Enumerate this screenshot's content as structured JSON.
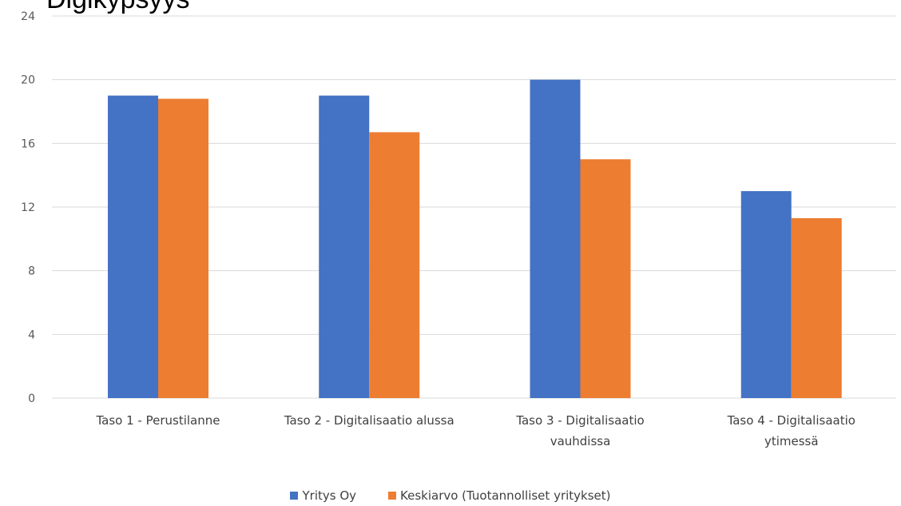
{
  "chart_data": {
    "type": "bar",
    "title": "Digikypsyys",
    "categories": [
      "Taso 1 - Perustilanne",
      "Taso 2 - Digitalisaatio alussa",
      "Taso 3 - Digitalisaatio vauhdissa",
      "Taso 4 - Digitalisaatio ytimessä"
    ],
    "category_lines": [
      [
        "Taso 1 - Perustilanne"
      ],
      [
        "Taso 2 - Digitalisaatio alussa"
      ],
      [
        "Taso 3 - Digitalisaatio",
        "vauhdissa"
      ],
      [
        "Taso 4 - Digitalisaatio",
        "ytimessä"
      ]
    ],
    "series": [
      {
        "name": "Yritys Oy",
        "color": "#4472C4",
        "values": [
          19,
          19,
          20,
          13
        ]
      },
      {
        "name": "Keskiarvo (Tuotannolliset yritykset)",
        "color": "#ED7D31",
        "values": [
          18.8,
          16.7,
          15,
          11.3
        ]
      }
    ],
    "ylim": [
      0,
      24
    ],
    "yticks": [
      0,
      4,
      8,
      12,
      16,
      20,
      24
    ],
    "grid": true,
    "legend": "bottom"
  }
}
